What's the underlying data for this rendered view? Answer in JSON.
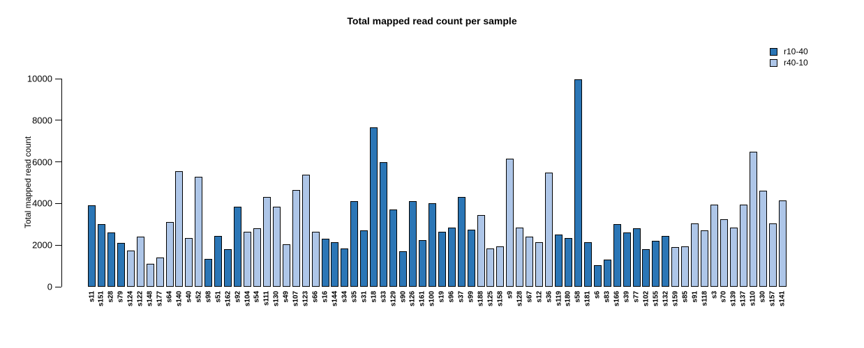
{
  "page": {
    "background": "#ffffff"
  },
  "chart_data": {
    "type": "bar",
    "title": "Total mapped read count per sample",
    "xlabel": "",
    "ylabel": "Total mapped read count",
    "ylim": [
      0,
      10000
    ],
    "yticks": [
      0,
      2000,
      4000,
      6000,
      8000,
      10000
    ],
    "grid": false,
    "legend_position": "top-right",
    "series": [
      {
        "name": "r10-40",
        "color": "#2B76B6"
      },
      {
        "name": "r40-10",
        "color": "#AEC6E8"
      }
    ],
    "categories": [
      "s11",
      "s151",
      "s28",
      "s79",
      "s124",
      "s122",
      "s148",
      "s177",
      "s64",
      "s140",
      "s40",
      "s52",
      "s98",
      "s51",
      "s162",
      "s92",
      "s104",
      "s54",
      "s111",
      "s130",
      "s49",
      "s107",
      "s123",
      "s66",
      "s16",
      "s144",
      "s34",
      "s35",
      "s31",
      "s18",
      "s33",
      "s129",
      "s90",
      "s126",
      "s161",
      "s100",
      "s19",
      "s96",
      "s37",
      "s99",
      "s188",
      "s125",
      "s158",
      "s9",
      "s128",
      "s67",
      "s12",
      "s36",
      "s119",
      "s180",
      "s58",
      "s181",
      "s6",
      "s83",
      "s166",
      "s39",
      "s77",
      "s102",
      "s155",
      "s132",
      "s159",
      "s85",
      "s91",
      "s118",
      "s3",
      "s70",
      "s139",
      "s137",
      "s110",
      "s30",
      "s157",
      "s141"
    ],
    "values": [
      3900,
      3000,
      2600,
      2100,
      1750,
      2400,
      1100,
      1400,
      3100,
      5550,
      2350,
      5300,
      1350,
      2450,
      1800,
      3850,
      2650,
      2800,
      4300,
      3850,
      2050,
      4650,
      5400,
      2650,
      2300,
      2150,
      1850,
      4100,
      2700,
      7650,
      6000,
      3700,
      1700,
      4100,
      2250,
      4000,
      2650,
      2850,
      4300,
      2750,
      3450,
      1850,
      1950,
      6150,
      2850,
      2400,
      2150,
      5500,
      2500,
      2350,
      9950,
      2150,
      1050,
      1300,
      3000,
      2600,
      2800,
      1800,
      2200,
      2450,
      1900,
      1950,
      3050,
      2700,
      3950,
      3250,
      2850,
      3950,
      6500,
      4600,
      3050,
      4150
    ],
    "bar_series": [
      "r10-40",
      "r10-40",
      "r10-40",
      "r10-40",
      "r40-10",
      "r40-10",
      "r40-10",
      "r40-10",
      "r40-10",
      "r40-10",
      "r40-10",
      "r40-10",
      "r10-40",
      "r10-40",
      "r10-40",
      "r10-40",
      "r40-10",
      "r40-10",
      "r40-10",
      "r40-10",
      "r40-10",
      "r40-10",
      "r40-10",
      "r40-10",
      "r10-40",
      "r10-40",
      "r10-40",
      "r10-40",
      "r10-40",
      "r10-40",
      "r10-40",
      "r10-40",
      "r10-40",
      "r10-40",
      "r10-40",
      "r10-40",
      "r10-40",
      "r10-40",
      "r10-40",
      "r10-40",
      "r40-10",
      "r40-10",
      "r40-10",
      "r40-10",
      "r40-10",
      "r40-10",
      "r40-10",
      "r40-10",
      "r10-40",
      "r10-40",
      "r10-40",
      "r10-40",
      "r10-40",
      "r10-40",
      "r10-40",
      "r10-40",
      "r10-40",
      "r10-40",
      "r10-40",
      "r10-40",
      "r40-10",
      "r40-10",
      "r40-10",
      "r40-10",
      "r40-10",
      "r40-10",
      "r40-10",
      "r40-10",
      "r40-10",
      "r40-10",
      "r40-10",
      "r40-10"
    ]
  }
}
